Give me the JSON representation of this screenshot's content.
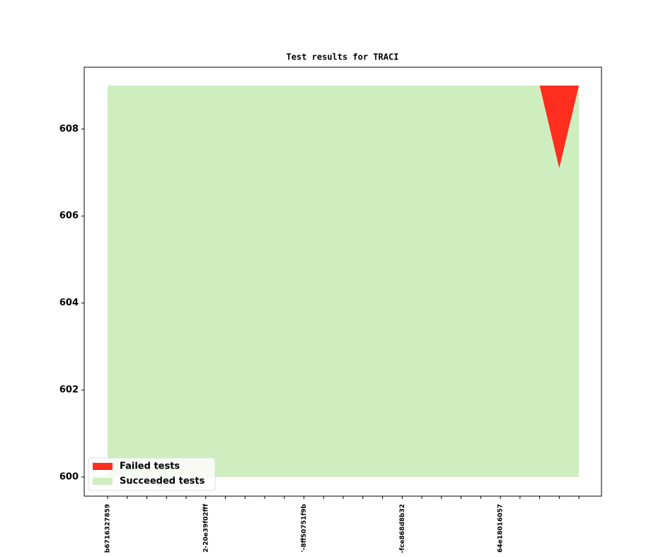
{
  "chart_data": {
    "type": "area",
    "title": "Test results for TRACI",
    "categories": [
      "b6716327859",
      null,
      null,
      null,
      null,
      "2-20e39f02fff",
      null,
      null,
      null,
      null,
      "'-8ff50751f9b",
      null,
      null,
      null,
      null,
      "-fce868d8b32",
      null,
      null,
      null,
      null,
      "64e18016057",
      null,
      null,
      null,
      null
    ],
    "series": [
      {
        "name": "Failed tests",
        "color": "#ff2e1f",
        "values": [
          0,
          0,
          0,
          0,
          0,
          0,
          0,
          0,
          0,
          0,
          0,
          0,
          0,
          0,
          0,
          0,
          0,
          0,
          0,
          0,
          0,
          0,
          0,
          1.9,
          0
        ]
      },
      {
        "name": "Succeeded tests",
        "color": "#cfeec0",
        "values": [
          609,
          609,
          609,
          609,
          609,
          609,
          609,
          609,
          609,
          609,
          609,
          609,
          609,
          609,
          609,
          609,
          609,
          609,
          609,
          609,
          609,
          609,
          609,
          609,
          609
        ]
      }
    ],
    "ylim": [
      599.56,
      609.42
    ],
    "yticks": [
      600,
      602,
      604,
      606,
      608
    ],
    "xlim": [
      -1.19,
      25.15
    ],
    "legend": "lower left"
  }
}
